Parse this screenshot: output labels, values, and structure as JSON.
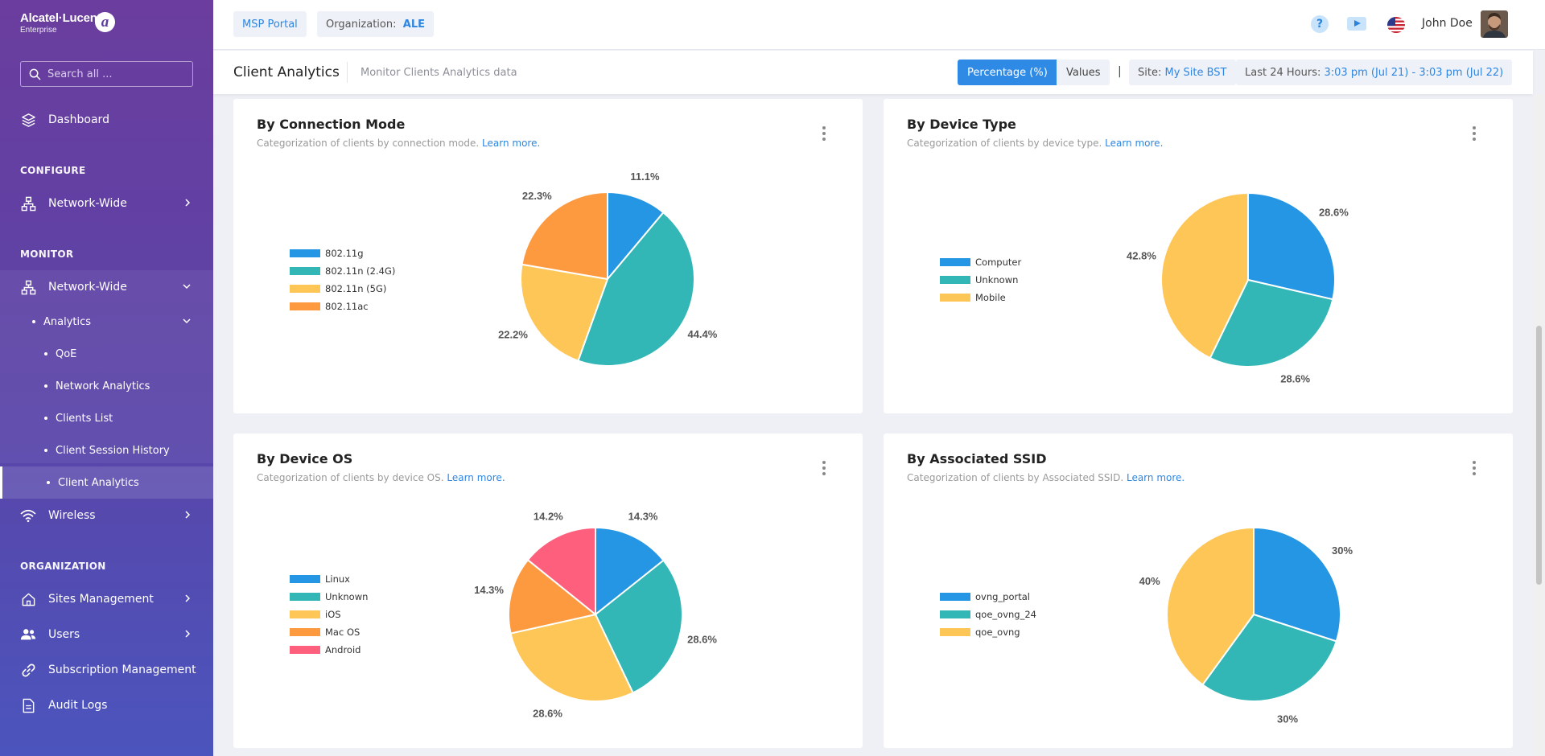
{
  "brand": {
    "name": "Alcatel·Lucent",
    "sub": "Enterprise",
    "mark": "a"
  },
  "search": {
    "placeholder": "Search all ..."
  },
  "sidebar": {
    "dashboard": "Dashboard",
    "configure_label": "CONFIGURE",
    "configure_network": "Network-Wide",
    "monitor_label": "MONITOR",
    "monitor_network": "Network-Wide",
    "analytics": "Analytics",
    "analytics_items": [
      "QoE",
      "Network Analytics",
      "Clients List",
      "Client Session History",
      "Client Analytics"
    ],
    "wireless": "Wireless",
    "organization_label": "ORGANIZATION",
    "sites": "Sites Management",
    "users": "Users",
    "subscription": "Subscription Management",
    "audit": "Audit Logs"
  },
  "header": {
    "msp_portal": "MSP Portal",
    "org_label": "Organization:",
    "org_value": "ALE",
    "help": "?",
    "user_name": "John Doe"
  },
  "subheader": {
    "title": "Client Analytics",
    "description": "Monitor Clients Analytics data",
    "percentage_btn": "Percentage (%)",
    "values_btn": "Values",
    "pipe": "|",
    "site_label": "Site:",
    "site_value": "My Site BST",
    "range_label": "Last 24 Hours:",
    "range_value": "3:03 pm (Jul 21) - 3:03 pm (Jul 22)"
  },
  "colors": {
    "blue": "#2596e4",
    "teal": "#33b6b6",
    "yellow": "#fec656",
    "orange": "#fd9a40",
    "pink": "#fd5f7d",
    "accent": "#2f8ae6"
  },
  "chart_data": [
    {
      "type": "pie",
      "title": "By Connection Mode",
      "description": "Categorization of clients by connection mode.",
      "learn_more": "Learn more.",
      "series": [
        {
          "name": "802.11g",
          "value": 11.1,
          "label": "11.1%",
          "color": "#2596e4"
        },
        {
          "name": "802.11n (2.4G)",
          "value": 44.4,
          "label": "44.4%",
          "color": "#33b6b6"
        },
        {
          "name": "802.11n (5G)",
          "value": 22.2,
          "label": "22.2%",
          "color": "#fec656"
        },
        {
          "name": "802.11ac",
          "value": 22.3,
          "label": "22.3%",
          "color": "#fd9a40"
        }
      ]
    },
    {
      "type": "pie",
      "title": "By Device Type",
      "description": "Categorization of clients by device type.",
      "learn_more": "Learn more.",
      "series": [
        {
          "name": "Computer",
          "value": 28.6,
          "label": "28.6%",
          "color": "#2596e4"
        },
        {
          "name": "Unknown",
          "value": 28.6,
          "label": "28.6%",
          "color": "#33b6b6"
        },
        {
          "name": "Mobile",
          "value": 42.8,
          "label": "42.8%",
          "color": "#fec656"
        }
      ]
    },
    {
      "type": "pie",
      "title": "By Device OS",
      "description": "Categorization of clients by device OS.",
      "learn_more": "Learn more.",
      "series": [
        {
          "name": "Linux",
          "value": 14.3,
          "label": "14.3%",
          "color": "#2596e4"
        },
        {
          "name": "Unknown",
          "value": 28.6,
          "label": "28.6%",
          "color": "#33b6b6"
        },
        {
          "name": "iOS",
          "value": 28.6,
          "label": "28.6%",
          "color": "#fec656"
        },
        {
          "name": "Mac OS",
          "value": 14.3,
          "label": "14.3%",
          "color": "#fd9a40"
        },
        {
          "name": "Android",
          "value": 14.2,
          "label": "14.2%",
          "color": "#fd5f7d"
        }
      ]
    },
    {
      "type": "pie",
      "title": "By Associated SSID",
      "description": "Categorization of clients by Associated SSID.",
      "learn_more": "Learn more.",
      "series": [
        {
          "name": "ovng_portal",
          "value": 30,
          "label": "30%",
          "color": "#2596e4"
        },
        {
          "name": "qoe_ovng_24",
          "value": 30,
          "label": "30%",
          "color": "#33b6b6"
        },
        {
          "name": "qoe_ovng",
          "value": 40,
          "label": "40%",
          "color": "#fec656"
        }
      ]
    }
  ]
}
